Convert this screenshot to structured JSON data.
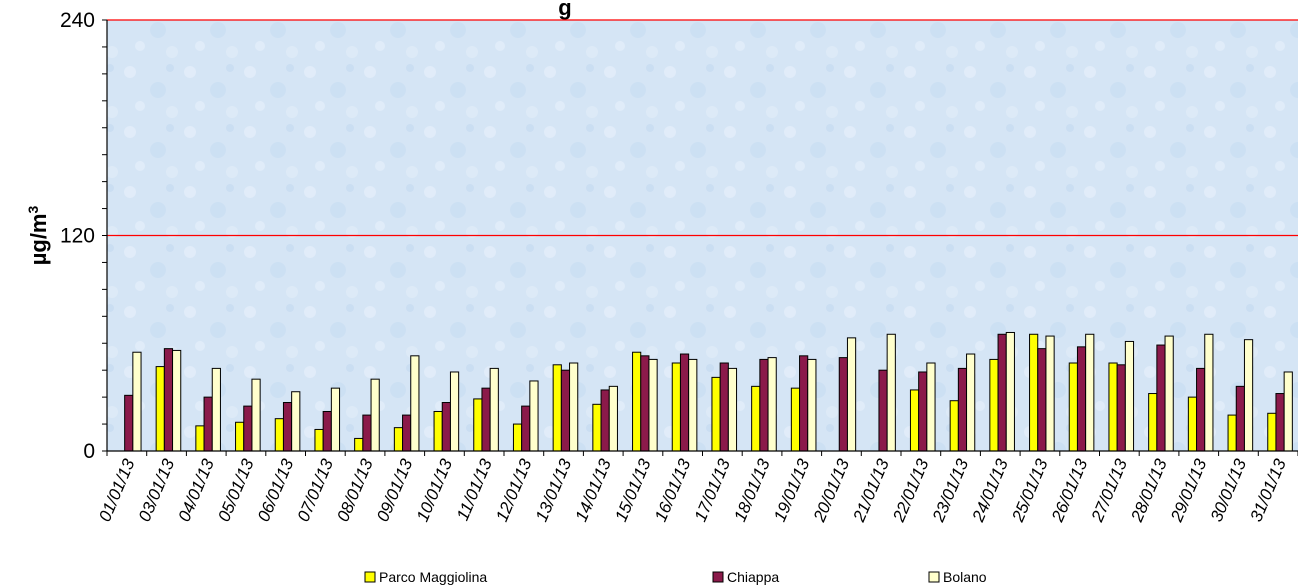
{
  "chart_data": {
    "type": "bar",
    "title": "g",
    "ylabel": "µg/m",
    "ylabel_superscript": "3",
    "xlabel": "",
    "ylim": [
      0,
      240
    ],
    "y_ticks": [
      "0",
      "120",
      "240"
    ],
    "limit_line": {
      "value": 120,
      "color": "#ff0000"
    },
    "plot_background": "#d6e6f5",
    "grid": false,
    "legend_position": "bottom",
    "categories": [
      "01/01/13",
      "03/01/13",
      "04/01/13",
      "05/01/13",
      "06/01/13",
      "07/01/13",
      "08/01/13",
      "09/01/13",
      "10/01/13",
      "11/01/13",
      "12/01/13",
      "13/01/13",
      "14/01/13",
      "15/01/13",
      "16/01/13",
      "17/01/13",
      "18/01/13",
      "19/01/13",
      "20/01/13",
      "21/01/13",
      "22/01/13",
      "23/01/13",
      "24/01/13",
      "25/01/13",
      "26/01/13",
      "27/01/13",
      "28/01/13",
      "29/01/13",
      "30/01/13",
      "31/01/13"
    ],
    "series": [
      {
        "name": "Parco Maggiolina",
        "color": "#ffff00",
        "values": [
          null,
          47,
          14,
          16,
          18,
          12,
          7,
          13,
          22,
          29,
          15,
          48,
          26,
          55,
          49,
          41,
          36,
          35,
          null,
          null,
          34,
          28,
          51,
          65,
          49,
          49,
          32,
          30,
          20,
          21
        ]
      },
      {
        "name": "Chiappa",
        "color": "#8b1a4a",
        "values": [
          31,
          57,
          30,
          25,
          27,
          22,
          20,
          20,
          27,
          35,
          25,
          45,
          34,
          53,
          54,
          49,
          51,
          53,
          52,
          45,
          44,
          46,
          65,
          57,
          58,
          48,
          59,
          46,
          36,
          32
        ]
      },
      {
        "name": "Bolano",
        "color": "#ffffcc",
        "values": [
          55,
          56,
          46,
          40,
          33,
          35,
          40,
          53,
          44,
          46,
          39,
          49,
          36,
          51,
          51,
          46,
          52,
          51,
          63,
          65,
          49,
          54,
          66,
          64,
          65,
          61,
          64,
          65,
          62,
          44
        ]
      }
    ]
  }
}
